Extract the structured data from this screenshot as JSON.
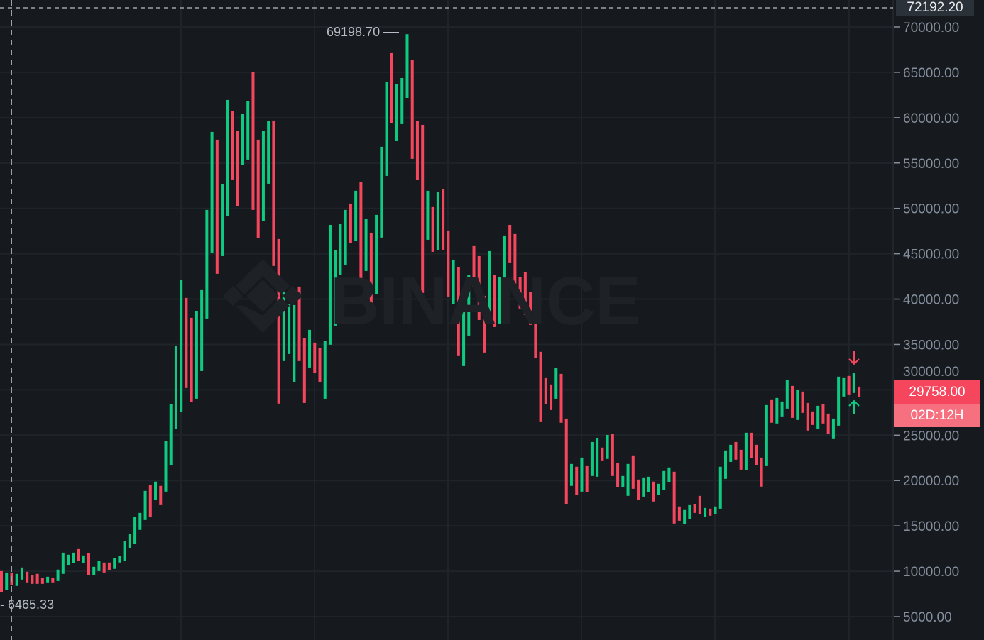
{
  "chart_data": {
    "type": "candlestick",
    "ylim": [
      5000,
      72192.2
    ],
    "y_ticks": [
      "70000.00",
      "65000.00",
      "60000.00",
      "55000.00",
      "50000.00",
      "45000.00",
      "40000.00",
      "35000.00",
      "30000.00",
      "25000.00",
      "20000.00",
      "15000.00",
      "10000.00",
      "5000.00"
    ],
    "grid": true,
    "colors": {
      "up": "#0ecb81",
      "down": "#f6465d",
      "background": "#161a1e",
      "grid": "#1f242a",
      "axis_text": "#848e9c"
    },
    "bars_open_close": [
      [
        10020,
        7680
      ],
      [
        7910,
        9860
      ],
      [
        9860,
        8450
      ],
      [
        8380,
        9710
      ],
      [
        9080,
        10410
      ],
      [
        9940,
        8770
      ],
      [
        9550,
        8610
      ],
      [
        9710,
        8610
      ],
      [
        9240,
        8610
      ],
      [
        8770,
        9390
      ],
      [
        9240,
        8770
      ],
      [
        8920,
        10180
      ],
      [
        9710,
        12050
      ],
      [
        10650,
        11820
      ],
      [
        10880,
        12050
      ],
      [
        12440,
        11120
      ],
      [
        10880,
        11740
      ],
      [
        11980,
        9550
      ],
      [
        9550,
        10490
      ],
      [
        10020,
        11120
      ],
      [
        10960,
        9860
      ],
      [
        10960,
        10100
      ],
      [
        10260,
        11430
      ],
      [
        10960,
        11660
      ],
      [
        11120,
        13310
      ],
      [
        12520,
        14090
      ],
      [
        12990,
        15960
      ],
      [
        14560,
        16430
      ],
      [
        15650,
        18860
      ],
      [
        19480,
        15960
      ],
      [
        17840,
        19880
      ],
      [
        19410,
        17290
      ],
      [
        18780,
        24330
      ],
      [
        21670,
        28400
      ],
      [
        25660,
        34810
      ],
      [
        27540,
        42080
      ],
      [
        40130,
        30200
      ],
      [
        37940,
        28630
      ],
      [
        29020,
        38640
      ],
      [
        32070,
        40990
      ],
      [
        37860,
        49830
      ],
      [
        45130,
        58430
      ],
      [
        57570,
        42790
      ],
      [
        44740,
        52640
      ],
      [
        49120,
        61950
      ],
      [
        60700,
        53190
      ],
      [
        58510,
        50220
      ],
      [
        54750,
        60380
      ],
      [
        55380,
        61790
      ],
      [
        65000,
        49830
      ],
      [
        57570,
        46700
      ],
      [
        48570,
        58510
      ],
      [
        52720,
        59600
      ],
      [
        59680,
        43650
      ],
      [
        46620,
        28480
      ],
      [
        33170,
        40830
      ],
      [
        33950,
        39420
      ],
      [
        30820,
        39350
      ],
      [
        41380,
        33170
      ],
      [
        35670,
        28550
      ],
      [
        32460,
        36610
      ],
      [
        35200,
        31840
      ],
      [
        34650,
        30820
      ],
      [
        29020,
        35360
      ],
      [
        34970,
        48180
      ],
      [
        37080,
        45370
      ],
      [
        42630,
        48260
      ],
      [
        43800,
        49830
      ],
      [
        50530,
        46150
      ],
      [
        46380,
        51940
      ],
      [
        52870,
        41930
      ],
      [
        43100,
        48810
      ],
      [
        47320,
        39350
      ],
      [
        40520,
        49280
      ],
      [
        46780,
        56790
      ],
      [
        53580,
        63980
      ],
      [
        67190,
        59370
      ],
      [
        57410,
        63740
      ],
      [
        59290,
        64370
      ],
      [
        62180,
        69200
      ],
      [
        66400,
        55460
      ],
      [
        59600,
        53110
      ],
      [
        59210,
        40680
      ],
      [
        46540,
        51940
      ],
      [
        50140,
        45210
      ],
      [
        45370,
        51780
      ],
      [
        52090,
        45450
      ],
      [
        47560,
        40280
      ],
      [
        39420,
        44350
      ],
      [
        43490,
        33720
      ],
      [
        32620,
        38880
      ],
      [
        35980,
        42630
      ],
      [
        45840,
        41380
      ],
      [
        44740,
        37700
      ],
      [
        40360,
        34110
      ],
      [
        37230,
        45290
      ],
      [
        42630,
        36920
      ],
      [
        37310,
        42400
      ],
      [
        40280,
        47010
      ],
      [
        48180,
        44040
      ],
      [
        47170,
        41690
      ],
      [
        42400,
        38960
      ],
      [
        42940,
        38250
      ],
      [
        40750,
        37160
      ],
      [
        40050,
        33480
      ],
      [
        34190,
        26440
      ],
      [
        31290,
        28400
      ],
      [
        30590,
        27770
      ],
      [
        29020,
        32390
      ],
      [
        31760,
        26370
      ],
      [
        26830,
        17370
      ],
      [
        19410,
        21830
      ],
      [
        21520,
        18390
      ],
      [
        18780,
        22530
      ],
      [
        21590,
        18700
      ],
      [
        20500,
        24250
      ],
      [
        20420,
        24640
      ],
      [
        23630,
        22140
      ],
      [
        22380,
        25030
      ],
      [
        25110,
        20500
      ],
      [
        21910,
        19250
      ],
      [
        19250,
        20500
      ],
      [
        18310,
        21830
      ],
      [
        22770,
        19090
      ],
      [
        20110,
        17840
      ],
      [
        18230,
        20340
      ],
      [
        18700,
        20420
      ],
      [
        19880,
        17690
      ],
      [
        18390,
        19640
      ],
      [
        18940,
        21050
      ],
      [
        19800,
        21440
      ],
      [
        20970,
        15260
      ],
      [
        17140,
        15570
      ],
      [
        15180,
        16750
      ],
      [
        15730,
        17290
      ],
      [
        17370,
        16430
      ],
      [
        18310,
        16280
      ],
      [
        15960,
        16980
      ],
      [
        16900,
        16120
      ],
      [
        16280,
        17140
      ],
      [
        16900,
        21520
      ],
      [
        20190,
        23320
      ],
      [
        22060,
        23940
      ],
      [
        24250,
        22300
      ],
      [
        23390,
        21200
      ],
      [
        21130,
        25270
      ],
      [
        25270,
        22460
      ],
      [
        23940,
        21670
      ],
      [
        22530,
        19330
      ],
      [
        21590,
        28320
      ],
      [
        28870,
        26370
      ],
      [
        26290,
        29100
      ],
      [
        26990,
        28710
      ],
      [
        27930,
        31060
      ],
      [
        30430,
        26910
      ],
      [
        26680,
        29960
      ],
      [
        29810,
        27460
      ],
      [
        28550,
        25510
      ],
      [
        27620,
        26130
      ],
      [
        25660,
        28240
      ],
      [
        28400,
        26290
      ],
      [
        27380,
        25110
      ],
      [
        24570,
        26830
      ],
      [
        26050,
        31450
      ],
      [
        29260,
        31290
      ],
      [
        31530,
        29490
      ],
      [
        29650,
        31840
      ],
      [
        30350,
        29180
      ]
    ],
    "high_marker": "69198.70",
    "low_marker": "6465.33",
    "crosshair_price": "72192.20",
    "last_price": "29758.00",
    "countdown": "02D:12H"
  },
  "watermark": "BINANCE",
  "icons": {
    "sell_signal": "arrow-down-icon",
    "buy_signal": "arrow-up-icon"
  }
}
